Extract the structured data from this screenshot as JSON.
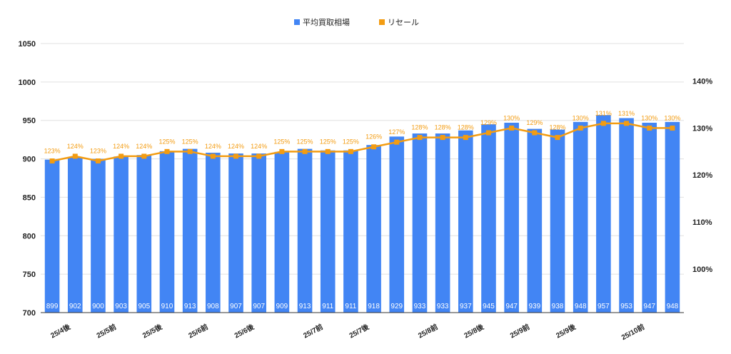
{
  "chart_data": {
    "type": "bar",
    "title": "",
    "legend": {
      "position": "top-center"
    },
    "legend_labels": [
      "平均買取相場",
      "リセール"
    ],
    "colors": {
      "bar": "#4285f4",
      "line": "#f39c12",
      "grid": "#e0e0e0"
    },
    "x_tick_labels": [
      {
        "index": 0.5,
        "label": "25/4後"
      },
      {
        "index": 2.5,
        "label": "25/5前"
      },
      {
        "index": 4.5,
        "label": "25/5後"
      },
      {
        "index": 6.5,
        "label": "25/6前"
      },
      {
        "index": 8.5,
        "label": "25/6後"
      },
      {
        "index": 11.5,
        "label": "25/7前"
      },
      {
        "index": 13.5,
        "label": "25/7後"
      },
      {
        "index": 16.5,
        "label": "25/8前"
      },
      {
        "index": 18.5,
        "label": "25/8後"
      },
      {
        "index": 20.5,
        "label": "25/9前"
      },
      {
        "index": 22.5,
        "label": "25/9後"
      },
      {
        "index": 25.5,
        "label": "25/10前"
      }
    ],
    "series": [
      {
        "name": "平均買取相場",
        "type": "bar",
        "axis": "left",
        "values": [
          899,
          902,
          900,
          903,
          905,
          910,
          913,
          908,
          907,
          907,
          909,
          913,
          911,
          911,
          918,
          929,
          933,
          933,
          937,
          945,
          947,
          939,
          938,
          948,
          957,
          953,
          947,
          948
        ]
      },
      {
        "name": "リセール",
        "type": "line",
        "axis": "right",
        "values": [
          123,
          124,
          123,
          124,
          124,
          125,
          125,
          124,
          124,
          124,
          125,
          125,
          125,
          125,
          126,
          127,
          128,
          128,
          128,
          129,
          130,
          129,
          128,
          130,
          131,
          131,
          130,
          130
        ],
        "labels": [
          "123%",
          "124%",
          "123%",
          "124%",
          "124%",
          "125%",
          "125%",
          "124%",
          "124%",
          "124%",
          "125%",
          "125%",
          "125%",
          "125%",
          "126%",
          "127%",
          "128%",
          "128%",
          "128%",
          "129%",
          "130%",
          "129%",
          "128%",
          "130%",
          "131%",
          "131%",
          "130%",
          "130%"
        ]
      }
    ],
    "y_left": {
      "min": 700,
      "max": 1050,
      "ticks": [
        700,
        750,
        800,
        850,
        900,
        950,
        1000,
        1050
      ],
      "tick_labels": [
        "700",
        "750",
        "800",
        "850",
        "900",
        "950",
        "1000",
        "1050"
      ]
    },
    "y_right": {
      "min": 90.7,
      "max": 148,
      "ticks": [
        100,
        110,
        120,
        130,
        140
      ],
      "tick_labels": [
        "100%",
        "110%",
        "120%",
        "130%",
        "140%"
      ]
    },
    "grid": true
  }
}
